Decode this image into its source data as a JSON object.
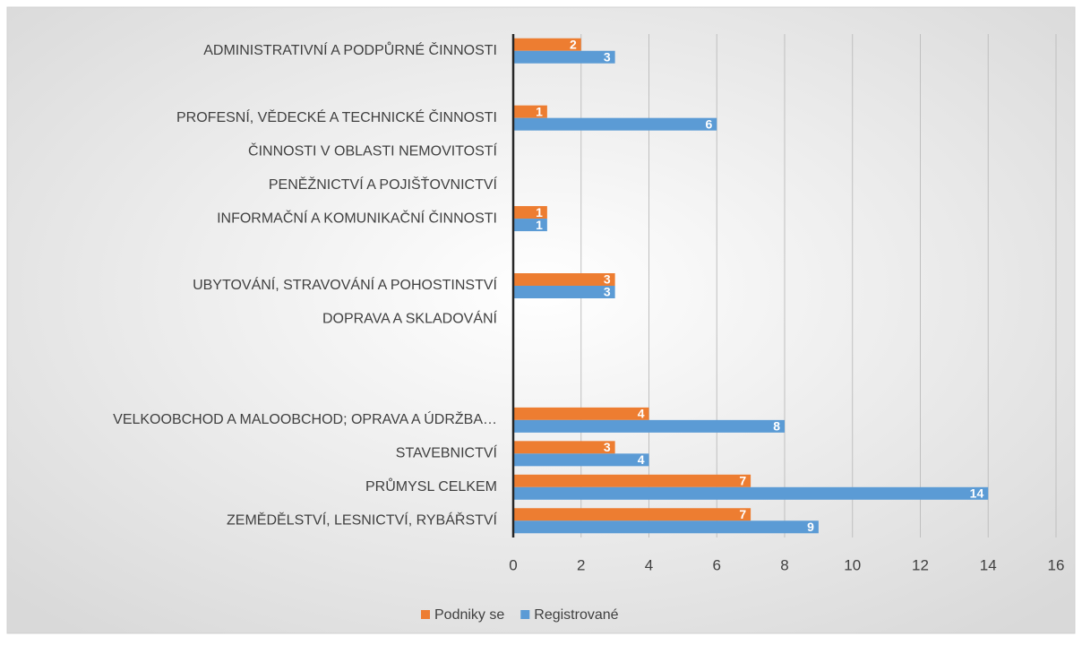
{
  "chart_data": {
    "type": "barh",
    "categories": [
      "ZEMĚDĚLSTVÍ, LESNICTVÍ, RYBÁŘSTVÍ",
      "PRŮMYSL CELKEM",
      "STAVEBNICTVÍ",
      "VELKOOBCHOD A MALOOBCHOD; OPRAVA A ÚDRŽBA…",
      null,
      null,
      "DOPRAVA A SKLADOVÁNÍ",
      "UBYTOVÁNÍ, STRAVOVÁNÍ A POHOSTINSTVÍ",
      null,
      "INFORMAČNÍ A KOMUNIKAČNÍ ČINNOSTI",
      "PENĚŽNICTVÍ A POJIŠŤOVNICTVÍ",
      "ČINNOSTI V OBLASTI NEMOVITOSTÍ",
      "PROFESNÍ, VĚDECKÉ A TECHNICKÉ ČINNOSTI",
      null,
      "ADMINISTRATIVNÍ A PODPŮRNÉ ČINNOSTI"
    ],
    "series": [
      {
        "name": "Podniky se",
        "color": "#ed7d31",
        "values": [
          7,
          7,
          3,
          4,
          null,
          null,
          null,
          3,
          null,
          1,
          null,
          null,
          1,
          null,
          2
        ]
      },
      {
        "name": "Registrované",
        "color": "#5b9bd5",
        "values": [
          9,
          14,
          4,
          8,
          null,
          null,
          null,
          3,
          null,
          1,
          null,
          null,
          6,
          null,
          3
        ]
      }
    ],
    "xlim": [
      0,
      16
    ],
    "xticks": [
      0,
      2,
      4,
      6,
      8,
      10,
      12,
      14,
      16
    ],
    "grid": true,
    "legend": "bottom"
  }
}
